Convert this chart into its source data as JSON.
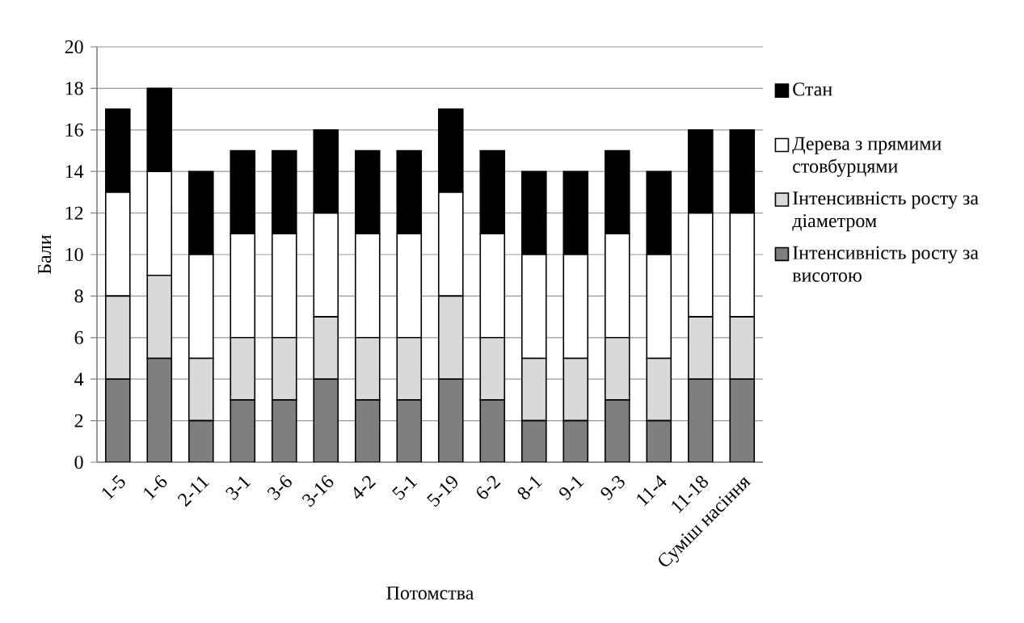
{
  "chart_data": {
    "type": "bar",
    "stacked": true,
    "xlabel": "Потомства",
    "ylabel": "Бали",
    "categories": [
      "1-5",
      "1-6",
      "2-11",
      "3-1",
      "3-6",
      "3-16",
      "4-2",
      "5-1",
      "5-19",
      "6-2",
      "8-1",
      "9-1",
      "9-3",
      "11-4",
      "11-18",
      "Суміш насіння"
    ],
    "series": [
      {
        "name": "Інтенсивність росту за висотою",
        "color": "#7f7f7f",
        "values": [
          4,
          5,
          2,
          3,
          3,
          4,
          3,
          3,
          4,
          3,
          2,
          2,
          3,
          2,
          4,
          4
        ]
      },
      {
        "name": "Інтенсивність росту за діаметром",
        "color": "#d9d9d9",
        "values": [
          4,
          4,
          3,
          3,
          3,
          3,
          3,
          3,
          4,
          3,
          3,
          3,
          3,
          3,
          3,
          3
        ]
      },
      {
        "name": "Дерева з прямими стовбурцями",
        "color": "#ffffff",
        "values": [
          5,
          5,
          5,
          5,
          5,
          5,
          5,
          5,
          5,
          5,
          5,
          5,
          5,
          5,
          5,
          5
        ]
      },
      {
        "name": "Стан",
        "color": "#000000",
        "values": [
          4,
          4,
          4,
          4,
          4,
          4,
          4,
          4,
          4,
          4,
          4,
          4,
          4,
          4,
          4,
          4
        ]
      }
    ],
    "ylim": [
      0,
      20
    ],
    "yticks": [
      0,
      2,
      4,
      6,
      8,
      10,
      12,
      14,
      16,
      18,
      20
    ],
    "grid": "y",
    "legend": "right"
  }
}
